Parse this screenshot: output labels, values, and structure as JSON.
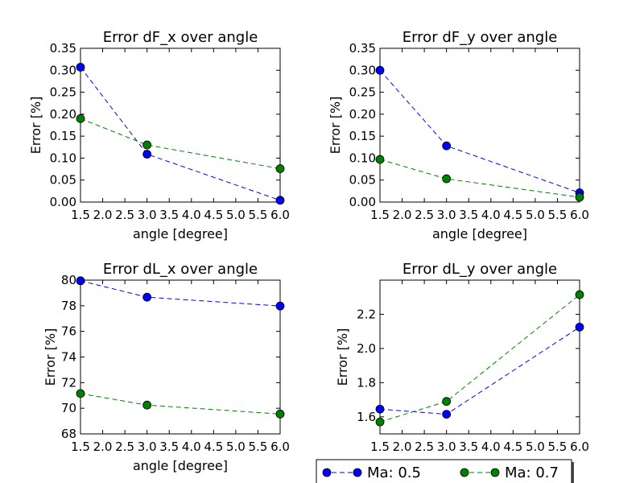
{
  "chart_data": [
    {
      "type": "line",
      "title": "Error dF_x over angle",
      "xlabel": "angle [degree]",
      "ylabel": "Error [%]",
      "xlim": [
        1.5,
        6.0
      ],
      "ylim": [
        0.0,
        0.35
      ],
      "xticks": [
        "1.5",
        "2.0",
        "2.5",
        "3.0",
        "3.5",
        "4.0",
        "4.5",
        "5.0",
        "5.5",
        "6.0"
      ],
      "yticks": [
        "0.00",
        "0.05",
        "0.10",
        "0.15",
        "0.20",
        "0.25",
        "0.30",
        "0.35"
      ],
      "x": [
        1.5,
        3.0,
        6.0
      ],
      "series": [
        {
          "name": "Ma: 0.5",
          "color": "#0000ff",
          "values": [
            0.307,
            0.109,
            0.004
          ]
        },
        {
          "name": "Ma: 0.7",
          "color": "#008000",
          "values": [
            0.19,
            0.13,
            0.076
          ]
        }
      ]
    },
    {
      "type": "line",
      "title": "Error dF_y over angle",
      "xlabel": "angle [degree]",
      "ylabel": "Error [%]",
      "xlim": [
        1.5,
        6.0
      ],
      "ylim": [
        0.0,
        0.35
      ],
      "xticks": [
        "1.5",
        "2.0",
        "2.5",
        "3.0",
        "3.5",
        "4.0",
        "4.5",
        "5.0",
        "5.5",
        "6.0"
      ],
      "yticks": [
        "0.00",
        "0.05",
        "0.10",
        "0.15",
        "0.20",
        "0.25",
        "0.30",
        "0.35"
      ],
      "x": [
        1.5,
        3.0,
        6.0
      ],
      "series": [
        {
          "name": "Ma: 0.5",
          "color": "#0000ff",
          "values": [
            0.3,
            0.128,
            0.021
          ]
        },
        {
          "name": "Ma: 0.7",
          "color": "#008000",
          "values": [
            0.097,
            0.053,
            0.011
          ]
        }
      ]
    },
    {
      "type": "line",
      "title": "Error dL_x over angle",
      "xlabel": "angle [degree]",
      "ylabel": "Error [%]",
      "xlim": [
        1.5,
        6.0
      ],
      "ylim": [
        68,
        80
      ],
      "xticks": [
        "1.5",
        "2.0",
        "2.5",
        "3.0",
        "3.5",
        "4.0",
        "4.5",
        "5.0",
        "5.5",
        "6.0"
      ],
      "yticks": [
        "68",
        "70",
        "72",
        "74",
        "76",
        "78",
        "80"
      ],
      "x": [
        1.5,
        3.0,
        6.0
      ],
      "series": [
        {
          "name": "Ma: 0.5",
          "color": "#0000ff",
          "values": [
            79.95,
            78.67,
            77.98
          ]
        },
        {
          "name": "Ma: 0.7",
          "color": "#008000",
          "values": [
            71.15,
            70.25,
            69.55
          ]
        }
      ]
    },
    {
      "type": "line",
      "title": "Error dL_y over angle",
      "xlabel": "",
      "ylabel": "Error [%]",
      "xlim": [
        1.5,
        6.0
      ],
      "ylim": [
        1.5,
        2.4
      ],
      "xticks": [
        "1.5",
        "2.0",
        "2.5",
        "3.0",
        "3.5",
        "4.0",
        "4.5",
        "5.0",
        "5.5",
        "6.0"
      ],
      "yticks": [
        "1.6",
        "1.8",
        "2.0",
        "2.2"
      ],
      "ytick_values": [
        1.6,
        1.8,
        2.0,
        2.2
      ],
      "x": [
        1.5,
        3.0,
        6.0
      ],
      "series": [
        {
          "name": "Ma: 0.5",
          "color": "#0000ff",
          "values": [
            1.645,
            1.615,
            2.125
          ]
        },
        {
          "name": "Ma: 0.7",
          "color": "#008000",
          "values": [
            1.57,
            1.69,
            2.315
          ]
        }
      ]
    }
  ],
  "legend": {
    "placement": "bottom-right",
    "entries": [
      {
        "label": "Ma: 0.5",
        "color": "#0000ff"
      },
      {
        "label": "Ma: 0.7",
        "color": "#008000"
      }
    ]
  }
}
